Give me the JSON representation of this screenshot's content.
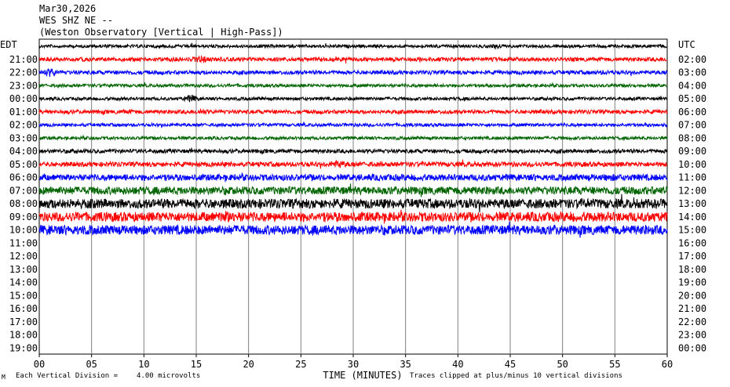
{
  "header": {
    "date": "Mar30,2026",
    "station": "WES SHZ NE --",
    "description": "(Weston Observatory [Vertical | High-Pass])"
  },
  "chart_data": {
    "type": "seismogram",
    "left_timezone": "EDT",
    "right_timezone": "UTC",
    "xlabel": "TIME (MINUTES)",
    "x_ticks": [
      "00",
      "05",
      "10",
      "15",
      "20",
      "25",
      "30",
      "35",
      "40",
      "45",
      "50",
      "55",
      "60"
    ],
    "xlim": [
      0,
      60
    ],
    "rows": [
      {
        "local": "",
        "utc": "",
        "color": "#000000",
        "amp": 2,
        "bursts": [
          [
            44,
            3
          ]
        ],
        "has_data": true
      },
      {
        "local": "21:00",
        "utc": "02:00",
        "color": "#ff0000",
        "amp": 2.5,
        "bursts": [
          [
            15.5,
            5
          ],
          [
            60,
            3
          ]
        ],
        "has_data": true
      },
      {
        "local": "22:00",
        "utc": "03:00",
        "color": "#0000ff",
        "amp": 2.5,
        "bursts": [
          [
            1,
            6
          ],
          [
            54,
            3
          ]
        ],
        "has_data": true
      },
      {
        "local": "23:00",
        "utc": "04:00",
        "color": "#006400",
        "amp": 2,
        "bursts": [],
        "has_data": true
      },
      {
        "local": "00:00",
        "utc": "05:00",
        "color": "#000000",
        "amp": 2,
        "bursts": [
          [
            14.5,
            5
          ]
        ],
        "has_data": true
      },
      {
        "local": "01:00",
        "utc": "06:00",
        "color": "#ff0000",
        "amp": 2.5,
        "bursts": [
          [
            15.5,
            4
          ],
          [
            8.5,
            3
          ]
        ],
        "has_data": true
      },
      {
        "local": "02:00",
        "utc": "07:00",
        "color": "#0000ff",
        "amp": 2,
        "bursts": [],
        "has_data": true
      },
      {
        "local": "03:00",
        "utc": "08:00",
        "color": "#006400",
        "amp": 2,
        "bursts": [],
        "has_data": true
      },
      {
        "local": "04:00",
        "utc": "09:00",
        "color": "#000000",
        "amp": 2.5,
        "bursts": [],
        "has_data": true
      },
      {
        "local": "05:00",
        "utc": "10:00",
        "color": "#ff0000",
        "amp": 3,
        "bursts": [
          [
            28.5,
            6
          ]
        ],
        "has_data": true
      },
      {
        "local": "06:00",
        "utc": "11:00",
        "color": "#0000ff",
        "amp": 4,
        "bursts": [
          [
            21,
            4
          ],
          [
            54.5,
            5
          ]
        ],
        "has_data": true
      },
      {
        "local": "07:00",
        "utc": "12:00",
        "color": "#006400",
        "amp": 5,
        "bursts": [
          [
            7.5,
            5
          ],
          [
            33,
            5
          ]
        ],
        "has_data": true
      },
      {
        "local": "08:00",
        "utc": "13:00",
        "color": "#000000",
        "amp": 6,
        "bursts": [
          [
            8,
            4
          ]
        ],
        "has_data": true
      },
      {
        "local": "09:00",
        "utc": "14:00",
        "color": "#ff0000",
        "amp": 6,
        "bursts": [
          [
            18,
            8
          ],
          [
            31,
            6
          ],
          [
            40.5,
            6
          ]
        ],
        "has_data": true
      },
      {
        "local": "10:00",
        "utc": "15:00",
        "color": "#0000ff",
        "amp": 6,
        "bursts": [
          [
            40,
            4
          ]
        ],
        "has_data": true
      },
      {
        "local": "11:00",
        "utc": "16:00",
        "has_data": false
      },
      {
        "local": "12:00",
        "utc": "17:00",
        "has_data": false
      },
      {
        "local": "13:00",
        "utc": "18:00",
        "has_data": false
      },
      {
        "local": "14:00",
        "utc": "19:00",
        "has_data": false
      },
      {
        "local": "15:00",
        "utc": "20:00",
        "has_data": false
      },
      {
        "local": "16:00",
        "utc": "21:00",
        "has_data": false
      },
      {
        "local": "17:00",
        "utc": "22:00",
        "has_data": false
      },
      {
        "local": "18:00",
        "utc": "23:00",
        "has_data": false
      },
      {
        "local": "19:00",
        "utc": "00:00",
        "has_data": false
      }
    ]
  },
  "footer": {
    "logo_text": "M",
    "scale_label": "Each Vertical Division =",
    "scale_value": "4.00 microvolts",
    "clip_note": "Traces clipped at plus/minus 10 vertical divisions"
  }
}
